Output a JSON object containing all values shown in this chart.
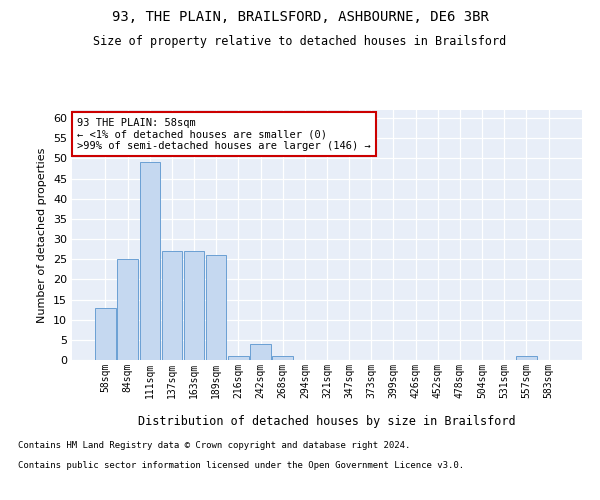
{
  "title": "93, THE PLAIN, BRAILSFORD, ASHBOURNE, DE6 3BR",
  "subtitle": "Size of property relative to detached houses in Brailsford",
  "xlabel": "Distribution of detached houses by size in Brailsford",
  "ylabel": "Number of detached properties",
  "bar_color": "#c5d8f0",
  "bar_edge_color": "#6a9fd4",
  "background_color": "#e8eef8",
  "bins": [
    "58sqm",
    "84sqm",
    "111sqm",
    "137sqm",
    "163sqm",
    "189sqm",
    "216sqm",
    "242sqm",
    "268sqm",
    "294sqm",
    "321sqm",
    "347sqm",
    "373sqm",
    "399sqm",
    "426sqm",
    "452sqm",
    "478sqm",
    "504sqm",
    "531sqm",
    "557sqm",
    "583sqm"
  ],
  "values": [
    13,
    25,
    49,
    27,
    27,
    26,
    1,
    4,
    1,
    0,
    0,
    0,
    0,
    0,
    0,
    0,
    0,
    0,
    0,
    1,
    0
  ],
  "ylim": [
    0,
    62
  ],
  "yticks": [
    0,
    5,
    10,
    15,
    20,
    25,
    30,
    35,
    40,
    45,
    50,
    55,
    60
  ],
  "annotation_text": "93 THE PLAIN: 58sqm\n← <1% of detached houses are smaller (0)\n>99% of semi-detached houses are larger (146) →",
  "annotation_box_edge_color": "#cc0000",
  "footnote1": "Contains HM Land Registry data © Crown copyright and database right 2024.",
  "footnote2": "Contains public sector information licensed under the Open Government Licence v3.0."
}
